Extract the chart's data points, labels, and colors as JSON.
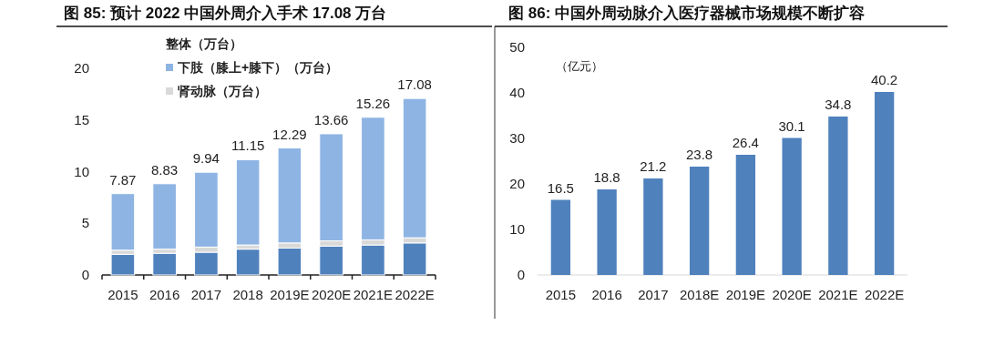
{
  "chart_data": [
    {
      "type": "bar",
      "title": "图 85:  预计 2022 中国外周介入手术 17.08 万台",
      "stacked": true,
      "legend": "top left",
      "legend_title": "整体（万台）",
      "categories": [
        "2015",
        "2016",
        "2017",
        "2018",
        "2019E",
        "2020E",
        "2021E",
        "2022E"
      ],
      "series": [
        {
          "color": "#4f81bd",
          "values": [
            2.0,
            2.1,
            2.2,
            2.5,
            2.6,
            2.8,
            2.9,
            3.1
          ]
        },
        {
          "name": "肾动脉（万台）",
          "color": "#d9d9d9",
          "values": [
            0.4,
            0.4,
            0.5,
            0.4,
            0.5,
            0.5,
            0.5,
            0.5
          ]
        },
        {
          "name": "下肢（膝上+膝下）（万台）",
          "color": "#8eb4e3",
          "values": [
            5.47,
            6.33,
            7.24,
            8.25,
            9.19,
            10.36,
            11.86,
            13.48
          ]
        }
      ],
      "totals": [
        "7.87",
        "8.83",
        "9.94",
        "11.15",
        "12.29",
        "13.66",
        "15.26",
        "17.08"
      ],
      "ylim": [
        0,
        20
      ],
      "yticks": [
        0,
        5,
        10,
        15,
        20
      ]
    },
    {
      "type": "bar",
      "title": "图 86: 中国外周动脉介入医疗器械市场规模不断扩容",
      "ylabel": "（亿元）",
      "data_labels": true,
      "categories": [
        "2015",
        "2016",
        "2017",
        "2018E",
        "2019E",
        "2020E",
        "2021E",
        "2022E"
      ],
      "series": [
        {
          "color": "#4f81bd",
          "values": [
            16.5,
            18.8,
            21.2,
            23.8,
            26.4,
            30.1,
            34.8,
            40.2
          ]
        }
      ],
      "ylim": [
        0,
        50
      ],
      "yticks": [
        0,
        10,
        20,
        30,
        40,
        50
      ]
    }
  ]
}
